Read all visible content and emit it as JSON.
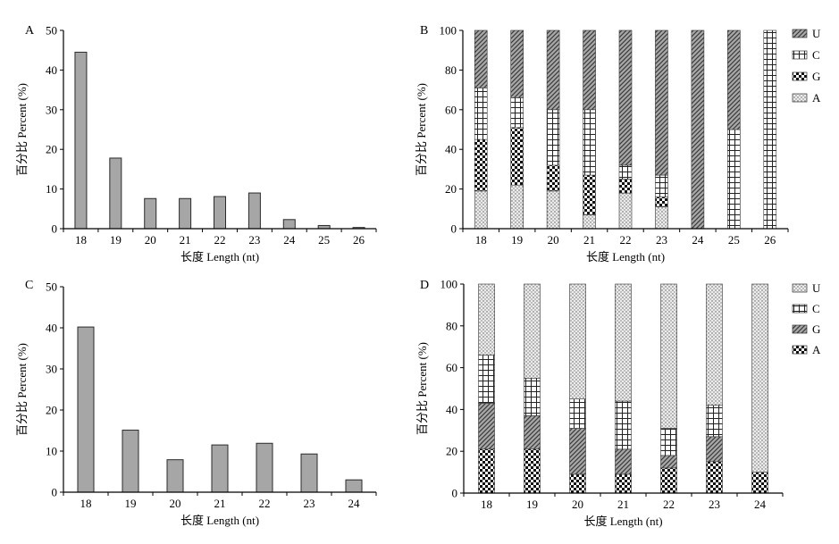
{
  "chart_data": [
    {
      "panel": "A",
      "type": "bar",
      "categories": [
        "18",
        "19",
        "20",
        "21",
        "22",
        "23",
        "24",
        "25",
        "26"
      ],
      "values": [
        44.5,
        17.8,
        7.6,
        7.6,
        8.1,
        9.0,
        2.3,
        0.8,
        0.3
      ],
      "xlabel": "长度 Length (nt)",
      "ylabel": "百分比 Percent (%)",
      "ylim": [
        0,
        50
      ],
      "yticks": [
        0,
        10,
        20,
        30,
        40,
        50
      ],
      "grid": false
    },
    {
      "panel": "B",
      "type": "bar",
      "stacked": true,
      "categories": [
        "18",
        "19",
        "20",
        "21",
        "22",
        "23",
        "24",
        "25",
        "26"
      ],
      "series": [
        {
          "name": "A",
          "pattern": "dots",
          "values": [
            19,
            22,
            19,
            7,
            18,
            11,
            0,
            0,
            0
          ]
        },
        {
          "name": "G",
          "pattern": "checker",
          "values": [
            26,
            29,
            13,
            20,
            7,
            5,
            0,
            0,
            0
          ]
        },
        {
          "name": "C",
          "pattern": "grid",
          "values": [
            26,
            15,
            28,
            33,
            7,
            11,
            0,
            50,
            100
          ]
        },
        {
          "name": "U",
          "pattern": "diagonal",
          "values": [
            29,
            34,
            40,
            40,
            68,
            73,
            100,
            50,
            0
          ]
        }
      ],
      "xlabel": "长度 Length (nt)",
      "ylabel": "百分比 Percent (%)",
      "ylim": [
        0,
        100
      ],
      "yticks": [
        0,
        20,
        40,
        60,
        80,
        100
      ],
      "legend": [
        "U",
        "C",
        "G",
        "A"
      ],
      "legend_position": "right"
    },
    {
      "panel": "C",
      "type": "bar",
      "categories": [
        "18",
        "19",
        "20",
        "21",
        "22",
        "23",
        "24"
      ],
      "values": [
        40.2,
        15.1,
        7.9,
        11.5,
        11.9,
        9.3,
        3.0
      ],
      "xlabel": "长度 Length (nt)",
      "ylabel": "百分比 Percent (%)",
      "ylim": [
        0,
        50
      ],
      "yticks": [
        0,
        10,
        20,
        30,
        40,
        50
      ],
      "grid": false
    },
    {
      "panel": "D",
      "type": "bar",
      "stacked": true,
      "categories": [
        "18",
        "19",
        "20",
        "21",
        "22",
        "23",
        "24"
      ],
      "series": [
        {
          "name": "A",
          "pattern": "checker",
          "values": [
            21,
            21,
            9,
            9,
            12,
            15,
            10
          ]
        },
        {
          "name": "G",
          "pattern": "diagonal",
          "values": [
            22,
            16,
            22,
            12,
            6,
            12,
            0
          ]
        },
        {
          "name": "C",
          "pattern": "grid",
          "values": [
            23,
            18,
            14,
            23,
            13,
            15,
            0
          ]
        },
        {
          "name": "U",
          "pattern": "dots",
          "values": [
            34,
            45,
            55,
            56,
            69,
            58,
            90
          ]
        }
      ],
      "xlabel": "长度 Length (nt)",
      "ylabel": "百分比 Percent (%)",
      "ylim": [
        0,
        100
      ],
      "yticks": [
        0,
        20,
        40,
        60,
        80,
        100
      ],
      "legend": [
        "U",
        "C",
        "G",
        "A"
      ],
      "legend_position": "right"
    }
  ]
}
